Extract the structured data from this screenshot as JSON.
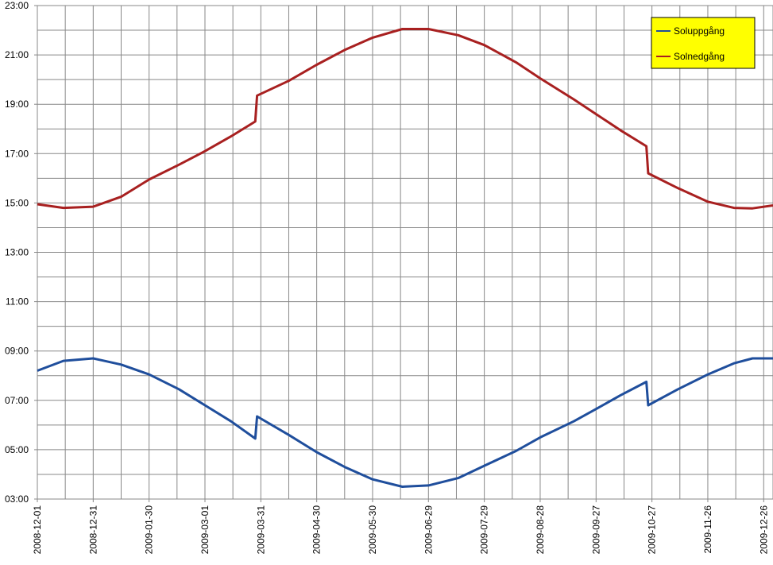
{
  "chart_data": {
    "type": "line",
    "x": [
      "2008-12-01",
      "2008-12-15",
      "2008-12-31",
      "2009-01-15",
      "2009-01-30",
      "2009-02-15",
      "2009-03-01",
      "2009-03-15",
      "2009-03-28",
      "2009-03-29",
      "2009-04-15",
      "2009-04-30",
      "2009-05-15",
      "2009-05-30",
      "2009-06-15",
      "2009-06-29",
      "2009-07-15",
      "2009-07-29",
      "2009-08-15",
      "2009-08-28",
      "2009-09-15",
      "2009-09-27",
      "2009-10-10",
      "2009-10-24",
      "2009-10-25",
      "2009-11-10",
      "2009-11-26",
      "2009-12-10",
      "2009-12-20",
      "2009-12-31"
    ],
    "series": [
      {
        "name": "Soluppgång",
        "color": "#1f4e9c",
        "values": [
          8.2,
          8.6,
          8.7,
          8.45,
          8.05,
          7.45,
          6.8,
          6.15,
          5.45,
          6.35,
          5.6,
          4.9,
          4.3,
          3.8,
          3.5,
          3.55,
          3.85,
          4.35,
          4.95,
          5.5,
          6.15,
          6.65,
          7.2,
          7.75,
          6.8,
          7.45,
          8.05,
          8.5,
          8.7,
          8.7
        ]
      },
      {
        "name": "Solnedgång",
        "color": "#a82020",
        "values": [
          14.95,
          14.8,
          14.85,
          15.25,
          15.95,
          16.55,
          17.1,
          17.7,
          18.3,
          19.35,
          19.95,
          20.6,
          21.2,
          21.7,
          22.05,
          22.05,
          21.8,
          21.4,
          20.7,
          20.05,
          19.2,
          18.6,
          17.95,
          17.3,
          16.2,
          15.6,
          15.05,
          14.8,
          14.78,
          14.9
        ]
      }
    ],
    "xlim": [
      "2008-12-01",
      "2009-12-31"
    ],
    "xticks": [
      "2008-12-01",
      "2008-12-31",
      "2009-01-30",
      "2009-03-01",
      "2009-03-31",
      "2009-04-30",
      "2009-05-30",
      "2009-06-29",
      "2009-07-29",
      "2009-08-28",
      "2009-09-27",
      "2009-10-27",
      "2009-11-26",
      "2009-12-26"
    ],
    "ylim": [
      3,
      23
    ],
    "yticks": [
      {
        "value": 3,
        "label": "03:00"
      },
      {
        "value": 5,
        "label": "05:00"
      },
      {
        "value": 7,
        "label": "07:00"
      },
      {
        "value": 9,
        "label": "09:00"
      },
      {
        "value": 11,
        "label": "11:00"
      },
      {
        "value": 13,
        "label": "13:00"
      },
      {
        "value": 15,
        "label": "15:00"
      },
      {
        "value": 17,
        "label": "17:00"
      },
      {
        "value": 19,
        "label": "19:00"
      },
      {
        "value": 21,
        "label": "21:00"
      },
      {
        "value": 23,
        "label": "23:00"
      }
    ],
    "grid": true,
    "legend": "top-right"
  }
}
